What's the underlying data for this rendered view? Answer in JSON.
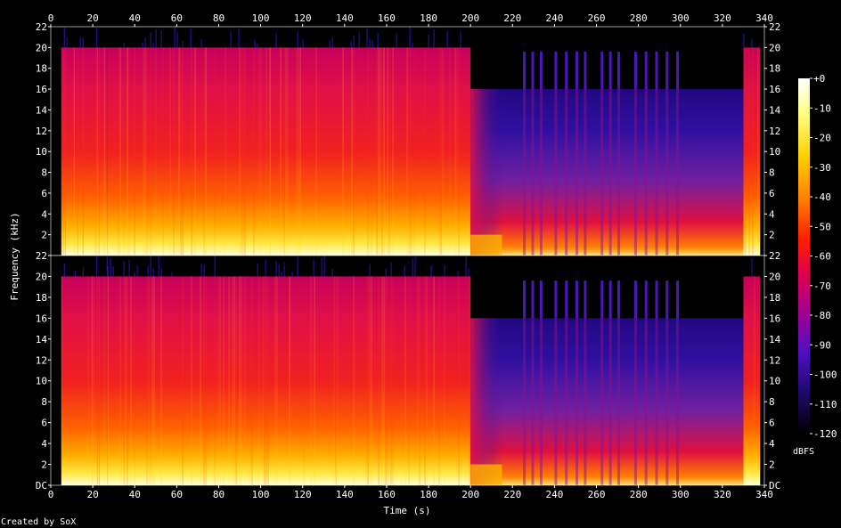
{
  "chart_data": {
    "type": "heatmap",
    "subtype": "spectrogram",
    "xlabel": "Time (s)",
    "ylabel": "Frequency (kHz)",
    "xlim": [
      0,
      340
    ],
    "ylim": [
      0,
      22
    ],
    "x_ticks": [
      "0",
      "20",
      "40",
      "60",
      "80",
      "100",
      "120",
      "140",
      "160",
      "180",
      "200",
      "220",
      "240",
      "260",
      "280",
      "300",
      "320",
      "340"
    ],
    "y_ticks_top_channel": [
      "2",
      "4",
      "6",
      "8",
      "10",
      "12",
      "14",
      "16",
      "18",
      "20",
      "22"
    ],
    "y_ticks_bottom_channel": [
      "DC",
      "2",
      "4",
      "6",
      "8",
      "10",
      "12",
      "14",
      "16",
      "18",
      "20",
      "22"
    ],
    "colorbar": {
      "label": "dBFS",
      "range": [
        -120,
        0
      ],
      "ticks": [
        "+0",
        "-10",
        "-20",
        "-30",
        "-40",
        "-50",
        "-60",
        "-70",
        "-80",
        "-90",
        "-100",
        "-110",
        "-120"
      ]
    },
    "channels": [
      {
        "name": "",
        "segments": [
          {
            "t_start": 5,
            "t_end": 27,
            "bandwidth_khz": 20,
            "level": "loud"
          },
          {
            "t_start": 27,
            "t_end": 200,
            "bandwidth_khz": 20,
            "level": "loud"
          },
          {
            "t_start": 200,
            "t_end": 215,
            "bandwidth_khz": 16,
            "level": "fading"
          },
          {
            "t_start": 215,
            "t_end": 330,
            "bandwidth_khz": 16,
            "level": "quiet"
          },
          {
            "t_start": 330,
            "t_end": 338,
            "bandwidth_khz": 20,
            "level": "loud"
          }
        ]
      },
      {
        "name": "",
        "segments": [
          {
            "t_start": 5,
            "t_end": 27,
            "bandwidth_khz": 20,
            "level": "loud"
          },
          {
            "t_start": 27,
            "t_end": 200,
            "bandwidth_khz": 20,
            "level": "loud"
          },
          {
            "t_start": 200,
            "t_end": 215,
            "bandwidth_khz": 16,
            "level": "fading"
          },
          {
            "t_start": 215,
            "t_end": 330,
            "bandwidth_khz": 16,
            "level": "quiet"
          },
          {
            "t_start": 330,
            "t_end": 338,
            "bandwidth_khz": 20,
            "level": "loud"
          }
        ]
      }
    ]
  },
  "footer": {
    "credit": "Created by SoX"
  },
  "colors": {
    "background": "#000000",
    "text": "#ffffff"
  }
}
